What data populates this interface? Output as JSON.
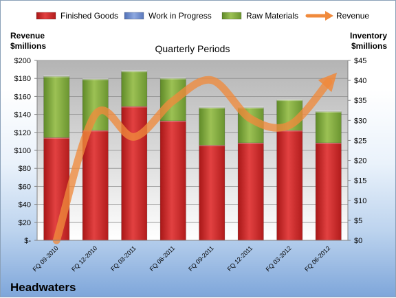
{
  "chart_data": {
    "type": "bar",
    "stacked": true,
    "title": "Quarterly Periods",
    "company": "Headwaters",
    "categories": [
      "FQ 09-2010",
      "FQ 12-2010",
      "FQ 03-2011",
      "FQ 06-2011",
      "FQ 09-2011",
      "FQ 12-2011",
      "FQ 03-2012",
      "FQ 06-2012"
    ],
    "left_axis": {
      "label_line1": "Revenue",
      "label_line2": "$millions",
      "ylim": [
        0,
        200
      ],
      "ticks": [
        0,
        20,
        40,
        60,
        80,
        100,
        120,
        140,
        160,
        180,
        200
      ],
      "tick_labels": [
        "$-",
        "$20",
        "$40",
        "$60",
        "$80",
        "$100",
        "$120",
        "$140",
        "$160",
        "$180",
        "$200"
      ]
    },
    "right_axis": {
      "label_line1": "Inventory",
      "label_line2": "$millions",
      "ylim": [
        0,
        45
      ],
      "ticks": [
        0,
        5,
        10,
        15,
        20,
        25,
        30,
        35,
        40,
        45
      ],
      "tick_labels": [
        "$0",
        "$5",
        "$10",
        "$15",
        "$20",
        "$25",
        "$30",
        "$35",
        "$40",
        "$45"
      ]
    },
    "grid": true,
    "legend_position": "top",
    "series": [
      {
        "name": "Finished Goods",
        "axis": "right",
        "color": "#cc2b2b",
        "values": [
          25.7,
          27.5,
          33.5,
          29.9,
          23.8,
          24.4,
          27.5,
          24.4
        ]
      },
      {
        "name": "Work in Progress",
        "axis": "right",
        "color": "#6f8fd0",
        "values": [
          0,
          0,
          0,
          0,
          0,
          0,
          0,
          0
        ]
      },
      {
        "name": "Raw Materials",
        "axis": "right",
        "color": "#7fa83a",
        "values": [
          15.3,
          12.8,
          8.8,
          10.6,
          9.4,
          8.8,
          7.6,
          7.8
        ]
      },
      {
        "name": "Revenue",
        "axis": "left",
        "type": "line",
        "color": "#f08a3c",
        "values": [
          0,
          140,
          115,
          155,
          178,
          135,
          128,
          176
        ]
      }
    ]
  }
}
